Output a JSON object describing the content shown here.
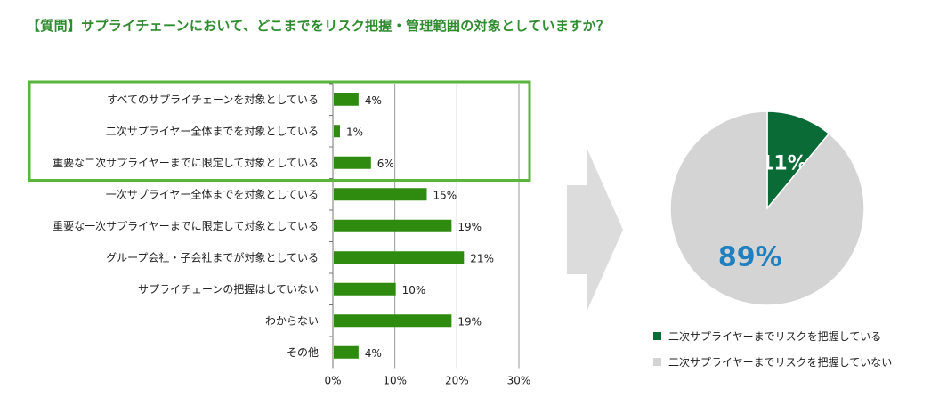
{
  "question": "【質問】サプライチェーンにおいて、どこまでをリスク把握・管理範囲の対象としていますか？",
  "colors": {
    "bar": "#2e8b0f",
    "highlight_border": "#5ab53c",
    "pie_green": "#0a6b36",
    "pie_gray": "#d4d4d4",
    "pie_big_label": "#1f7fbf",
    "arrow": "#dcdcdc",
    "grid": "#999999"
  },
  "chart_data": [
    {
      "type": "bar",
      "orientation": "horizontal",
      "categories": [
        "すべてのサプライチェーンを対象としている",
        "二次サプライヤー全体までを対象としている",
        "重要な二次サプライヤーまでに限定して対象としている",
        "一次サプライヤー全体までを対象としている",
        "重要な一次サプライヤーまでに限定して対象としている",
        "グループ会社・子会社までが対象としている",
        "サプライチェーンの把握はしていない",
        "わからない",
        "その他"
      ],
      "values": [
        4,
        1,
        6,
        15,
        19,
        21,
        10,
        19,
        4
      ],
      "value_labels": [
        "4%",
        "1%",
        "6%",
        "15%",
        "19%",
        "21%",
        "10%",
        "19%",
        "4%"
      ],
      "xlim": [
        0,
        30
      ],
      "xticks": [
        "0%",
        "10%",
        "20%",
        "30%"
      ],
      "xtick_values": [
        0,
        10,
        20,
        30
      ],
      "grid": true,
      "highlighted_rows": [
        0,
        1,
        2
      ]
    },
    {
      "type": "pie",
      "slices": [
        {
          "name": "二次サプライヤーまでリスクを把握している",
          "value": 11,
          "label": "11%"
        },
        {
          "name": "二次サプライヤーまでリスクを把握していない",
          "value": 89,
          "label": "89%"
        }
      ],
      "legend_position": "bottom"
    }
  ]
}
